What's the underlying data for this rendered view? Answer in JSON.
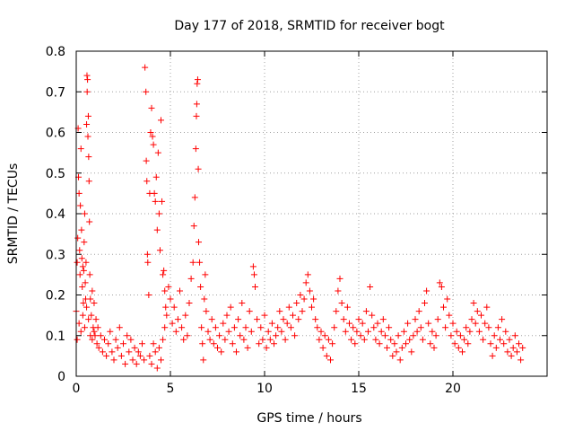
{
  "chart_data": {
    "type": "scatter",
    "title": "Day 177 of 2018, SRMTID for receiver bogt",
    "xlabel": "GPS time / hours",
    "ylabel": "SRMTID / TECUs",
    "xlim": [
      0,
      25
    ],
    "ylim": [
      0,
      0.8
    ],
    "x_ticks": [
      0,
      5,
      10,
      15,
      20
    ],
    "x_tick_labels": [
      "0",
      "5",
      "10",
      "15",
      "20"
    ],
    "y_ticks": [
      0,
      0.1,
      0.2,
      0.3,
      0.4,
      0.5,
      0.6,
      0.7,
      0.8
    ],
    "y_tick_labels": [
      "0",
      "0.1",
      "0.2",
      "0.3",
      "0.4",
      "0.5",
      "0.6",
      "0.7",
      "0.8"
    ],
    "grid": true,
    "marker": "+",
    "color": "#ff0000",
    "series": [
      {
        "name": "SRMTID",
        "points": [
          [
            0.0,
            0.16
          ],
          [
            0.05,
            0.28
          ],
          [
            0.08,
            0.34
          ],
          [
            0.1,
            0.61
          ],
          [
            0.12,
            0.49
          ],
          [
            0.15,
            0.45
          ],
          [
            0.18,
            0.31
          ],
          [
            0.2,
            0.25
          ],
          [
            0.22,
            0.42
          ],
          [
            0.25,
            0.56
          ],
          [
            0.28,
            0.36
          ],
          [
            0.3,
            0.29
          ],
          [
            0.32,
            0.22
          ],
          [
            0.35,
            0.27
          ],
          [
            0.38,
            0.18
          ],
          [
            0.4,
            0.26
          ],
          [
            0.42,
            0.33
          ],
          [
            0.45,
            0.4
          ],
          [
            0.48,
            0.23
          ],
          [
            0.5,
            0.19
          ],
          [
            0.52,
            0.28
          ],
          [
            0.55,
            0.62
          ],
          [
            0.57,
            0.74
          ],
          [
            0.58,
            0.7
          ],
          [
            0.6,
            0.73
          ],
          [
            0.62,
            0.59
          ],
          [
            0.64,
            0.64
          ],
          [
            0.66,
            0.54
          ],
          [
            0.68,
            0.48
          ],
          [
            0.7,
            0.38
          ],
          [
            0.72,
            0.25
          ],
          [
            0.75,
            0.19
          ],
          [
            0.8,
            0.15
          ],
          [
            0.85,
            0.21
          ],
          [
            0.9,
            0.12
          ],
          [
            0.95,
            0.18
          ],
          [
            1.0,
            0.1
          ],
          [
            1.05,
            0.14
          ],
          [
            1.1,
            0.08
          ],
          [
            1.15,
            0.12
          ],
          [
            0.05,
            0.09
          ],
          [
            0.15,
            0.13
          ],
          [
            0.25,
            0.11
          ],
          [
            0.35,
            0.15
          ],
          [
            0.45,
            0.12
          ],
          [
            0.55,
            0.17
          ],
          [
            0.65,
            0.14
          ],
          [
            0.75,
            0.1
          ],
          [
            0.85,
            0.09
          ],
          [
            0.95,
            0.11
          ],
          [
            1.2,
            0.07
          ],
          [
            1.3,
            0.1
          ],
          [
            1.4,
            0.06
          ],
          [
            1.5,
            0.09
          ],
          [
            1.6,
            0.05
          ],
          [
            1.7,
            0.08
          ],
          [
            1.8,
            0.11
          ],
          [
            1.9,
            0.06
          ],
          [
            2.0,
            0.04
          ],
          [
            2.1,
            0.09
          ],
          [
            2.2,
            0.07
          ],
          [
            2.3,
            0.12
          ],
          [
            2.4,
            0.05
          ],
          [
            2.5,
            0.08
          ],
          [
            2.6,
            0.03
          ],
          [
            2.7,
            0.1
          ],
          [
            2.8,
            0.06
          ],
          [
            2.9,
            0.09
          ],
          [
            3.0,
            0.04
          ],
          [
            3.1,
            0.07
          ],
          [
            3.2,
            0.03
          ],
          [
            3.3,
            0.06
          ],
          [
            3.4,
            0.05
          ],
          [
            3.5,
            0.08
          ],
          [
            3.6,
            0.04
          ],
          [
            3.65,
            0.76
          ],
          [
            3.7,
            0.7
          ],
          [
            3.72,
            0.53
          ],
          [
            3.75,
            0.48
          ],
          [
            3.78,
            0.3
          ],
          [
            3.8,
            0.28
          ],
          [
            3.85,
            0.2
          ],
          [
            3.9,
            0.45
          ],
          [
            3.95,
            0.6
          ],
          [
            4.0,
            0.66
          ],
          [
            4.05,
            0.59
          ],
          [
            4.1,
            0.57
          ],
          [
            4.15,
            0.45
          ],
          [
            4.2,
            0.43
          ],
          [
            4.25,
            0.49
          ],
          [
            4.3,
            0.36
          ],
          [
            4.35,
            0.55
          ],
          [
            4.4,
            0.4
          ],
          [
            4.45,
            0.31
          ],
          [
            4.5,
            0.63
          ],
          [
            4.55,
            0.43
          ],
          [
            4.6,
            0.25
          ],
          [
            4.65,
            0.26
          ],
          [
            4.7,
            0.21
          ],
          [
            4.75,
            0.17
          ],
          [
            3.9,
            0.05
          ],
          [
            4.0,
            0.03
          ],
          [
            4.1,
            0.08
          ],
          [
            4.2,
            0.06
          ],
          [
            4.3,
            0.02
          ],
          [
            4.4,
            0.07
          ],
          [
            4.5,
            0.04
          ],
          [
            4.6,
            0.09
          ],
          [
            4.7,
            0.12
          ],
          [
            4.8,
            0.15
          ],
          [
            4.9,
            0.22
          ],
          [
            5.0,
            0.19
          ],
          [
            5.1,
            0.13
          ],
          [
            5.2,
            0.17
          ],
          [
            5.3,
            0.11
          ],
          [
            5.4,
            0.14
          ],
          [
            5.5,
            0.21
          ],
          [
            5.6,
            0.12
          ],
          [
            5.7,
            0.09
          ],
          [
            5.8,
            0.15
          ],
          [
            5.9,
            0.1
          ],
          [
            6.0,
            0.18
          ],
          [
            6.1,
            0.24
          ],
          [
            6.2,
            0.28
          ],
          [
            6.25,
            0.37
          ],
          [
            6.3,
            0.44
          ],
          [
            6.35,
            0.56
          ],
          [
            6.38,
            0.64
          ],
          [
            6.4,
            0.67
          ],
          [
            6.42,
            0.72
          ],
          [
            6.45,
            0.73
          ],
          [
            6.48,
            0.51
          ],
          [
            6.5,
            0.33
          ],
          [
            6.55,
            0.28
          ],
          [
            6.6,
            0.22
          ],
          [
            6.65,
            0.12
          ],
          [
            6.7,
            0.08
          ],
          [
            6.75,
            0.04
          ],
          [
            6.8,
            0.19
          ],
          [
            6.85,
            0.25
          ],
          [
            6.9,
            0.16
          ],
          [
            7.0,
            0.11
          ],
          [
            7.1,
            0.09
          ],
          [
            7.2,
            0.14
          ],
          [
            7.3,
            0.08
          ],
          [
            7.4,
            0.12
          ],
          [
            7.5,
            0.07
          ],
          [
            7.6,
            0.1
          ],
          [
            7.7,
            0.06
          ],
          [
            7.8,
            0.13
          ],
          [
            7.9,
            0.09
          ],
          [
            8.0,
            0.15
          ],
          [
            8.1,
            0.11
          ],
          [
            8.2,
            0.17
          ],
          [
            8.3,
            0.08
          ],
          [
            8.4,
            0.12
          ],
          [
            8.5,
            0.06
          ],
          [
            8.6,
            0.14
          ],
          [
            8.7,
            0.1
          ],
          [
            8.8,
            0.18
          ],
          [
            8.9,
            0.09
          ],
          [
            9.0,
            0.12
          ],
          [
            9.1,
            0.07
          ],
          [
            9.2,
            0.16
          ],
          [
            9.3,
            0.11
          ],
          [
            9.4,
            0.27
          ],
          [
            9.45,
            0.25
          ],
          [
            9.5,
            0.22
          ],
          [
            9.6,
            0.14
          ],
          [
            9.7,
            0.08
          ],
          [
            9.8,
            0.12
          ],
          [
            9.9,
            0.09
          ],
          [
            10.0,
            0.15
          ],
          [
            10.1,
            0.07
          ],
          [
            10.2,
            0.11
          ],
          [
            10.3,
            0.09
          ],
          [
            10.4,
            0.13
          ],
          [
            10.5,
            0.08
          ],
          [
            10.6,
            0.1
          ],
          [
            10.7,
            0.12
          ],
          [
            10.8,
            0.16
          ],
          [
            10.9,
            0.11
          ],
          [
            11.0,
            0.14
          ],
          [
            11.1,
            0.09
          ],
          [
            11.2,
            0.13
          ],
          [
            11.3,
            0.17
          ],
          [
            11.4,
            0.12
          ],
          [
            11.5,
            0.15
          ],
          [
            11.6,
            0.1
          ],
          [
            11.7,
            0.18
          ],
          [
            11.8,
            0.14
          ],
          [
            11.9,
            0.2
          ],
          [
            12.0,
            0.16
          ],
          [
            12.1,
            0.19
          ],
          [
            12.2,
            0.23
          ],
          [
            12.3,
            0.25
          ],
          [
            12.4,
            0.21
          ],
          [
            12.5,
            0.17
          ],
          [
            12.6,
            0.19
          ],
          [
            12.7,
            0.14
          ],
          [
            12.8,
            0.12
          ],
          [
            12.9,
            0.09
          ],
          [
            13.0,
            0.11
          ],
          [
            13.1,
            0.07
          ],
          [
            13.2,
            0.1
          ],
          [
            13.3,
            0.05
          ],
          [
            13.4,
            0.09
          ],
          [
            13.5,
            0.04
          ],
          [
            13.6,
            0.08
          ],
          [
            13.7,
            0.12
          ],
          [
            13.8,
            0.16
          ],
          [
            13.9,
            0.21
          ],
          [
            14.0,
            0.24
          ],
          [
            14.1,
            0.18
          ],
          [
            14.2,
            0.14
          ],
          [
            14.3,
            0.11
          ],
          [
            14.4,
            0.17
          ],
          [
            14.5,
            0.13
          ],
          [
            14.6,
            0.09
          ],
          [
            14.7,
            0.12
          ],
          [
            14.8,
            0.08
          ],
          [
            14.9,
            0.11
          ],
          [
            15.0,
            0.14
          ],
          [
            15.1,
            0.1
          ],
          [
            15.2,
            0.13
          ],
          [
            15.3,
            0.09
          ],
          [
            15.4,
            0.16
          ],
          [
            15.5,
            0.11
          ],
          [
            15.6,
            0.22
          ],
          [
            15.7,
            0.15
          ],
          [
            15.8,
            0.12
          ],
          [
            15.9,
            0.09
          ],
          [
            16.0,
            0.13
          ],
          [
            16.1,
            0.08
          ],
          [
            16.2,
            0.11
          ],
          [
            16.3,
            0.14
          ],
          [
            16.4,
            0.1
          ],
          [
            16.5,
            0.07
          ],
          [
            16.6,
            0.12
          ],
          [
            16.7,
            0.09
          ],
          [
            16.8,
            0.05
          ],
          [
            16.9,
            0.08
          ],
          [
            17.0,
            0.06
          ],
          [
            17.1,
            0.1
          ],
          [
            17.2,
            0.04
          ],
          [
            17.3,
            0.07
          ],
          [
            17.4,
            0.11
          ],
          [
            17.5,
            0.08
          ],
          [
            17.6,
            0.13
          ],
          [
            17.7,
            0.09
          ],
          [
            17.8,
            0.06
          ],
          [
            17.9,
            0.1
          ],
          [
            18.0,
            0.14
          ],
          [
            18.1,
            0.11
          ],
          [
            18.2,
            0.16
          ],
          [
            18.3,
            0.12
          ],
          [
            18.4,
            0.09
          ],
          [
            18.5,
            0.18
          ],
          [
            18.6,
            0.21
          ],
          [
            18.7,
            0.13
          ],
          [
            18.8,
            0.08
          ],
          [
            18.9,
            0.11
          ],
          [
            19.0,
            0.07
          ],
          [
            19.1,
            0.1
          ],
          [
            19.2,
            0.14
          ],
          [
            19.3,
            0.23
          ],
          [
            19.4,
            0.22
          ],
          [
            19.5,
            0.17
          ],
          [
            19.6,
            0.12
          ],
          [
            19.7,
            0.19
          ],
          [
            19.8,
            0.15
          ],
          [
            19.9,
            0.1
          ],
          [
            20.0,
            0.13
          ],
          [
            20.1,
            0.08
          ],
          [
            20.2,
            0.11
          ],
          [
            20.3,
            0.07
          ],
          [
            20.4,
            0.1
          ],
          [
            20.5,
            0.06
          ],
          [
            20.6,
            0.09
          ],
          [
            20.7,
            0.12
          ],
          [
            20.8,
            0.08
          ],
          [
            20.9,
            0.11
          ],
          [
            21.0,
            0.14
          ],
          [
            21.1,
            0.18
          ],
          [
            21.2,
            0.13
          ],
          [
            21.3,
            0.16
          ],
          [
            21.4,
            0.11
          ],
          [
            21.5,
            0.15
          ],
          [
            21.6,
            0.09
          ],
          [
            21.7,
            0.13
          ],
          [
            21.8,
            0.17
          ],
          [
            21.9,
            0.12
          ],
          [
            22.0,
            0.08
          ],
          [
            22.1,
            0.05
          ],
          [
            22.2,
            0.1
          ],
          [
            22.3,
            0.07
          ],
          [
            22.4,
            0.12
          ],
          [
            22.5,
            0.09
          ],
          [
            22.6,
            0.14
          ],
          [
            22.7,
            0.08
          ],
          [
            22.8,
            0.11
          ],
          [
            22.9,
            0.06
          ],
          [
            23.0,
            0.09
          ],
          [
            23.1,
            0.05
          ],
          [
            23.2,
            0.07
          ],
          [
            23.3,
            0.1
          ],
          [
            23.4,
            0.06
          ],
          [
            23.5,
            0.08
          ],
          [
            23.6,
            0.04
          ],
          [
            23.7,
            0.07
          ]
        ]
      }
    ]
  }
}
